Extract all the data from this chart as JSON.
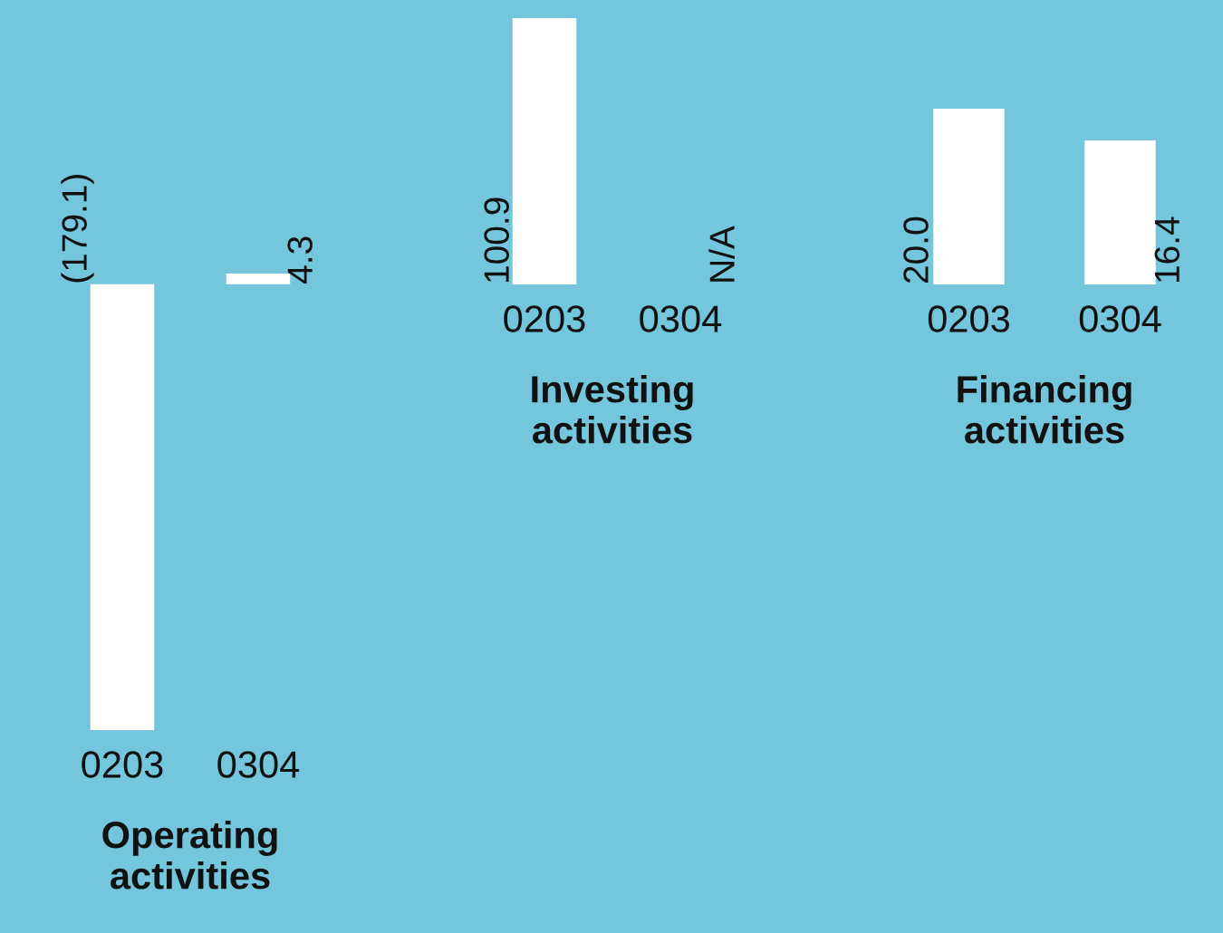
{
  "chart_data": [
    {
      "type": "bar",
      "xlabel": "Operating\nactivities",
      "categories": [
        "0203",
        "0304"
      ],
      "values": [
        -179.1,
        4.3
      ],
      "value_labels": [
        "(179.1)",
        "4.3"
      ],
      "color": "#ffffff",
      "tick_labels": "x"
    },
    {
      "type": "bar",
      "xlabel": "Investing\nactivities",
      "categories": [
        "0203",
        "0304"
      ],
      "values": [
        100.9,
        null
      ],
      "value_labels": [
        "100.9",
        "N/A"
      ],
      "color": "#ffffff",
      "tick_labels": "x"
    },
    {
      "type": "bar",
      "xlabel": "Financing\nactivities",
      "categories": [
        "0203",
        "0304"
      ],
      "values": [
        20.0,
        16.4
      ],
      "value_labels": [
        "20.0",
        "16.4"
      ],
      "color": "#ffffff",
      "tick_labels": "x"
    }
  ]
}
